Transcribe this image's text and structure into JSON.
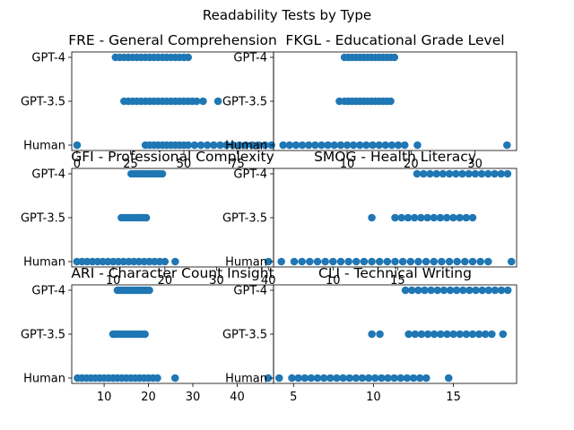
{
  "figure": {
    "suptitle": "Readability Tests by Type",
    "point_color": "#1f77b4"
  },
  "chart_data": [
    {
      "type": "scatter",
      "title": "FRE - General Comprehension",
      "categories": [
        "Human",
        "GPT-3.5",
        "GPT-4"
      ],
      "xlim": [
        -2.5,
        92
      ],
      "xticks": [
        0,
        25,
        50,
        75
      ],
      "series": [
        {
          "category": "Human",
          "x": [
            0,
            32,
            34,
            36,
            38,
            40,
            42,
            44,
            46,
            48,
            50,
            52,
            55,
            58,
            61,
            64,
            67,
            70,
            73,
            76,
            79,
            82,
            85,
            88,
            91
          ]
        },
        {
          "category": "GPT-3.5",
          "x": [
            22,
            24,
            26,
            28,
            30,
            32,
            34,
            36,
            38,
            40,
            42,
            44,
            46,
            48,
            50,
            52,
            54,
            56,
            59,
            66
          ]
        },
        {
          "category": "GPT-4",
          "x": [
            18,
            20,
            22,
            24,
            26,
            28,
            30,
            32,
            34,
            36,
            38,
            40,
            42,
            44,
            46,
            48,
            50,
            52
          ]
        }
      ]
    },
    {
      "type": "scatter",
      "title": "FKGL - Educational Grade Level",
      "categories": [
        "Human",
        "GPT-3.5",
        "GPT-4"
      ],
      "xlim": [
        -1.5,
        36.5
      ],
      "xticks": [
        10,
        20,
        30
      ],
      "series": [
        {
          "category": "Human",
          "x": [
            0,
            1,
            2,
            3,
            4,
            5,
            6,
            7,
            8,
            9,
            10,
            11,
            12,
            13,
            14,
            15,
            16,
            17,
            18,
            19,
            21,
            35
          ]
        },
        {
          "category": "GPT-3.5",
          "x": [
            8.8,
            9.6,
            10.2,
            10.8,
            11.4,
            12,
            12.6,
            13.2,
            13.8,
            14.4,
            15,
            15.6,
            16.2,
            16.8
          ]
        },
        {
          "category": "GPT-4",
          "x": [
            9.6,
            10.2,
            10.8,
            11.4,
            12,
            12.6,
            13.2,
            13.8,
            14.4,
            15,
            15.6,
            16.2,
            16.8,
            17.4
          ]
        }
      ]
    },
    {
      "type": "scatter",
      "title": "GFI - Professional Complexity",
      "categories": [
        "Human",
        "GPT-3.5",
        "GPT-4"
      ],
      "xlim": [
        2,
        41
      ],
      "xticks": [
        10,
        20,
        30,
        40
      ],
      "series": [
        {
          "category": "Human",
          "x": [
            3,
            4,
            5,
            6,
            7,
            8,
            9,
            10,
            11,
            12,
            13,
            14,
            15,
            16,
            17,
            18,
            19,
            20,
            22,
            40
          ]
        },
        {
          "category": "GPT-3.5",
          "x": [
            11.6,
            12.2,
            12.8,
            13.4,
            14,
            14.6,
            15.2,
            15.8,
            16.4
          ]
        },
        {
          "category": "GPT-4",
          "x": [
            13.5,
            14.1,
            14.7,
            15.3,
            15.9,
            16.5,
            17.1,
            17.7,
            18.3,
            18.9,
            19.5
          ]
        }
      ]
    },
    {
      "type": "scatter",
      "title": "SMOG - Health Literacy",
      "categories": [
        "Human",
        "GPT-3.5",
        "GPT-4"
      ],
      "xlim": [
        5.4,
        24.2
      ],
      "xticks": [
        10,
        15
      ],
      "series": [
        {
          "category": "Human",
          "x": [
            6,
            7,
            7.6,
            8.2,
            8.8,
            9.4,
            10,
            10.6,
            11.2,
            11.8,
            12.4,
            13,
            13.6,
            14.2,
            14.8,
            15.4,
            16,
            16.6,
            17.2,
            17.8,
            18.4,
            19,
            19.6,
            20.2,
            20.8,
            21.4,
            22,
            23.8
          ]
        },
        {
          "category": "GPT-3.5",
          "x": [
            13,
            14.8,
            15.3,
            15.8,
            16.3,
            16.8,
            17.3,
            17.8,
            18.3,
            18.8,
            19.3,
            19.8,
            20.3,
            20.8
          ]
        },
        {
          "category": "GPT-4",
          "x": [
            16.5,
            17,
            17.5,
            18,
            18.5,
            19,
            19.5,
            20,
            20.5,
            21,
            21.5,
            22,
            22.5,
            23,
            23.5
          ]
        }
      ]
    },
    {
      "type": "scatter",
      "title": "ARI - Character Count Insight",
      "categories": [
        "Human",
        "GPT-3.5",
        "GPT-4"
      ],
      "xlim": [
        2.7,
        48.2
      ],
      "xticks": [
        10,
        20,
        30,
        40
      ],
      "series": [
        {
          "category": "Human",
          "x": [
            4,
            5,
            6,
            7,
            8,
            9,
            10,
            11,
            12,
            13,
            14,
            15,
            16,
            17,
            18,
            19,
            20,
            21,
            22,
            26,
            47
          ]
        },
        {
          "category": "GPT-3.5",
          "x": [
            12,
            12.6,
            13.2,
            13.8,
            14.4,
            15,
            15.6,
            16.2,
            16.8,
            17.4,
            18,
            18.6,
            19.2
          ]
        },
        {
          "category": "GPT-4",
          "x": [
            13,
            13.6,
            14.2,
            14.8,
            15.4,
            16,
            16.6,
            17.2,
            17.8,
            18.4,
            19,
            19.6,
            20.2
          ]
        }
      ]
    },
    {
      "type": "scatter",
      "title": "CLI - Technical Writing",
      "categories": [
        "Human",
        "GPT-3.5",
        "GPT-4"
      ],
      "xlim": [
        3.75,
        18.95
      ],
      "xticks": [
        5,
        10,
        15
      ],
      "series": [
        {
          "category": "Human",
          "x": [
            4.1,
            4.9,
            5.3,
            5.7,
            6.1,
            6.5,
            6.9,
            7.3,
            7.7,
            8.1,
            8.5,
            8.9,
            9.3,
            9.7,
            10.1,
            10.5,
            10.9,
            11.3,
            11.7,
            12.1,
            12.5,
            12.9,
            13.3,
            14.7
          ]
        },
        {
          "category": "GPT-3.5",
          "x": [
            9.9,
            10.4,
            12.2,
            12.6,
            13,
            13.4,
            13.8,
            14.2,
            14.6,
            15,
            15.4,
            15.8,
            16.2,
            16.6,
            17,
            17.4,
            18.1
          ]
        },
        {
          "category": "GPT-4",
          "x": [
            12,
            12.4,
            12.8,
            13.2,
            13.6,
            14,
            14.4,
            14.8,
            15.2,
            15.6,
            16,
            16.4,
            16.8,
            17.2,
            17.6,
            18,
            18.4
          ]
        }
      ]
    }
  ]
}
